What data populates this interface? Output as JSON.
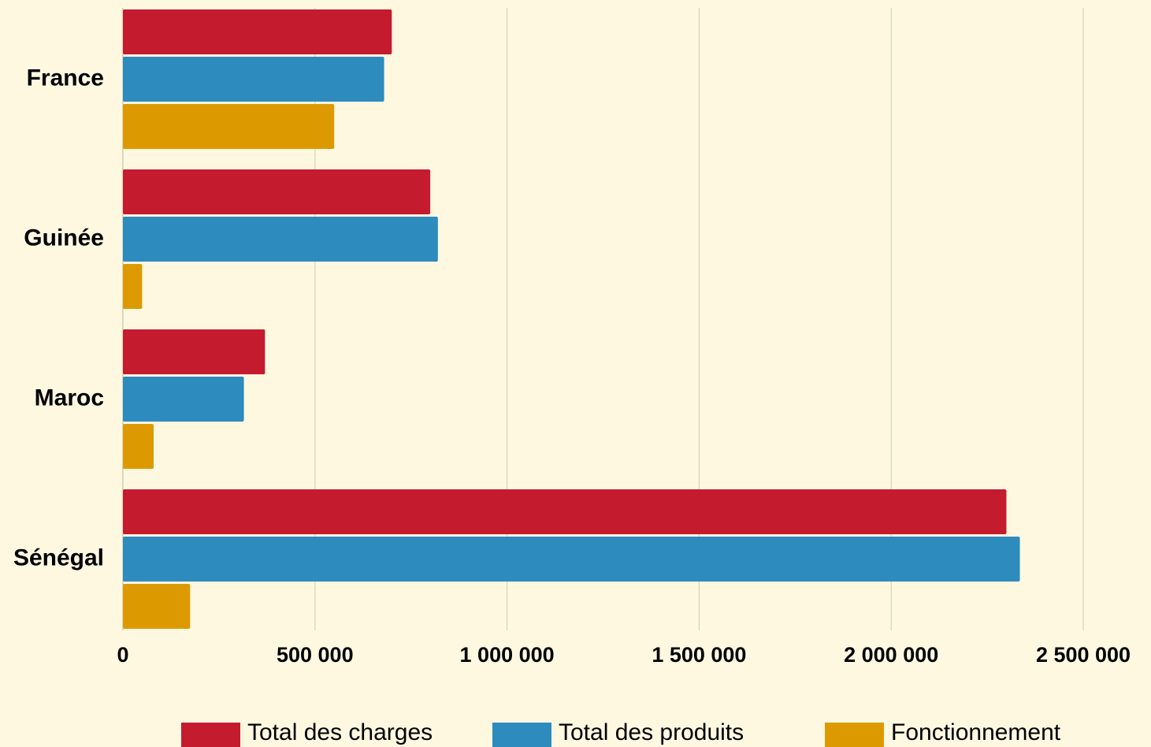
{
  "chart_data": {
    "type": "hbar",
    "categories": [
      "France",
      "Guinée",
      "Maroc",
      "Sénégal"
    ],
    "series": [
      {
        "name": "Total des charges",
        "color": "#c51b2f",
        "values": [
          700000,
          800000,
          370000,
          2300000
        ]
      },
      {
        "name": "Total des produits",
        "color": "#2e8bbd",
        "values": [
          680000,
          820000,
          315000,
          2335000
        ]
      },
      {
        "name": "Fonctionnement",
        "color": "#dc9a00",
        "values": [
          550000,
          50000,
          80000,
          175000
        ]
      }
    ],
    "xlim": [
      0,
      2500000
    ],
    "xticks": [
      0,
      {
        "value": 500000,
        "label": "500 000"
      },
      {
        "value": 1000000,
        "label": "1 000 000"
      },
      {
        "value": 1500000,
        "label": "1 500 000"
      },
      {
        "value": 2000000,
        "label": "2 000 000"
      },
      {
        "value": 2500000,
        "label": "2 500 000"
      }
    ],
    "grid": true,
    "legend": "bottom"
  }
}
